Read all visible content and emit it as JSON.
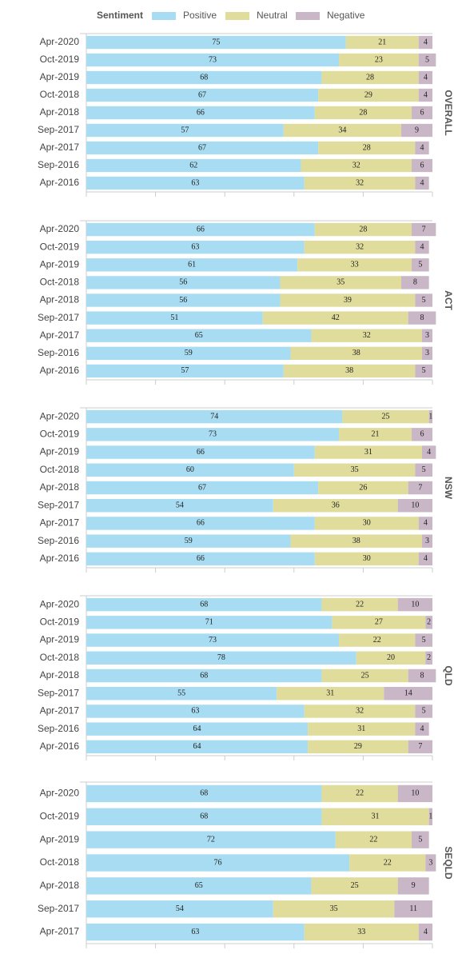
{
  "chart_data": [
    {
      "type": "bar",
      "title": "OVERALL",
      "legend_title": "Sentiment",
      "categories": [
        "Apr-2020",
        "Oct-2019",
        "Apr-2019",
        "Oct-2018",
        "Apr-2018",
        "Sep-2017",
        "Apr-2017",
        "Sep-2016",
        "Apr-2016"
      ],
      "series": [
        {
          "name": "Positive",
          "color": "#a8dcf2",
          "values": [
            75,
            73,
            68,
            67,
            66,
            57,
            67,
            62,
            63
          ]
        },
        {
          "name": "Neutral",
          "color": "#e0dc9c",
          "values": [
            21,
            23,
            28,
            29,
            28,
            34,
            28,
            32,
            32
          ]
        },
        {
          "name": "Negative",
          "color": "#c9b6c6",
          "values": [
            4,
            5,
            4,
            4,
            6,
            9,
            4,
            6,
            4
          ]
        }
      ],
      "xlim": [
        0,
        100
      ],
      "xticks": [
        0,
        20,
        40,
        60,
        80,
        100
      ],
      "stacked": true
    },
    {
      "type": "bar",
      "title": "ACT",
      "categories": [
        "Apr-2020",
        "Oct-2019",
        "Apr-2019",
        "Oct-2018",
        "Apr-2018",
        "Sep-2017",
        "Apr-2017",
        "Sep-2016",
        "Apr-2016"
      ],
      "series": [
        {
          "name": "Positive",
          "color": "#a8dcf2",
          "values": [
            66,
            63,
            61,
            56,
            56,
            51,
            65,
            59,
            57
          ]
        },
        {
          "name": "Neutral",
          "color": "#e0dc9c",
          "values": [
            28,
            32,
            33,
            35,
            39,
            42,
            32,
            38,
            38
          ]
        },
        {
          "name": "Negative",
          "color": "#c9b6c6",
          "values": [
            7,
            4,
            5,
            8,
            5,
            8,
            3,
            3,
            5
          ]
        }
      ],
      "xlim": [
        0,
        100
      ],
      "xticks": [
        0,
        20,
        40,
        60,
        80,
        100
      ],
      "stacked": true
    },
    {
      "type": "bar",
      "title": "NSW",
      "categories": [
        "Apr-2020",
        "Oct-2019",
        "Apr-2019",
        "Oct-2018",
        "Apr-2018",
        "Sep-2017",
        "Apr-2017",
        "Sep-2016",
        "Apr-2016"
      ],
      "series": [
        {
          "name": "Positive",
          "color": "#a8dcf2",
          "values": [
            74,
            73,
            66,
            60,
            67,
            54,
            66,
            59,
            66
          ]
        },
        {
          "name": "Neutral",
          "color": "#e0dc9c",
          "values": [
            25,
            21,
            31,
            35,
            26,
            36,
            30,
            38,
            30
          ]
        },
        {
          "name": "Negative",
          "color": "#c9b6c6",
          "values": [
            1,
            6,
            4,
            5,
            7,
            10,
            4,
            3,
            4
          ]
        }
      ],
      "xlim": [
        0,
        100
      ],
      "xticks": [
        0,
        20,
        40,
        60,
        80,
        100
      ],
      "stacked": true
    },
    {
      "type": "bar",
      "title": "QLD",
      "categories": [
        "Apr-2020",
        "Oct-2019",
        "Apr-2019",
        "Oct-2018",
        "Apr-2018",
        "Sep-2017",
        "Apr-2017",
        "Sep-2016",
        "Apr-2016"
      ],
      "series": [
        {
          "name": "Positive",
          "color": "#a8dcf2",
          "values": [
            68,
            71,
            73,
            78,
            68,
            55,
            63,
            64,
            64
          ]
        },
        {
          "name": "Neutral",
          "color": "#e0dc9c",
          "values": [
            22,
            27,
            22,
            20,
            25,
            31,
            32,
            31,
            29
          ]
        },
        {
          "name": "Negative",
          "color": "#c9b6c6",
          "values": [
            10,
            2,
            5,
            2,
            8,
            14,
            5,
            4,
            7
          ]
        }
      ],
      "xlim": [
        0,
        100
      ],
      "xticks": [
        0,
        20,
        40,
        60,
        80,
        100
      ],
      "stacked": true
    },
    {
      "type": "bar",
      "title": "SEQLD",
      "categories": [
        "Apr-2020",
        "Oct-2019",
        "Apr-2019",
        "Oct-2018",
        "Apr-2018",
        "Sep-2017",
        "Apr-2017"
      ],
      "series": [
        {
          "name": "Positive",
          "color": "#a8dcf2",
          "values": [
            68,
            68,
            72,
            76,
            65,
            54,
            63
          ]
        },
        {
          "name": "Neutral",
          "color": "#e0dc9c",
          "values": [
            22,
            31,
            22,
            22,
            25,
            35,
            33
          ]
        },
        {
          "name": "Negative",
          "color": "#c9b6c6",
          "values": [
            10,
            1,
            5,
            3,
            9,
            11,
            4
          ]
        }
      ],
      "xlim": [
        0,
        100
      ],
      "xticks": [
        0,
        20,
        40,
        60,
        80,
        100
      ],
      "stacked": true
    }
  ]
}
